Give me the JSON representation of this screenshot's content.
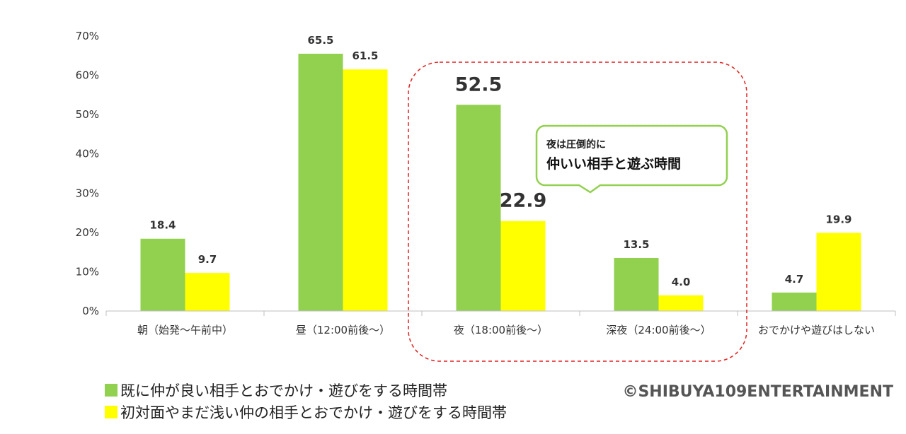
{
  "chart_data": {
    "type": "bar",
    "categories": [
      "朝（始発〜午前中）",
      "昼（12:00前後〜）",
      "夜（18:00前後〜）",
      "深夜（24:00前後〜）",
      "おでかけや遊びはしない"
    ],
    "series": [
      {
        "name": "既に仲が良い相手とおでかけ・遊びをする時間帯",
        "color": "#92d050",
        "values": [
          18.4,
          65.5,
          52.5,
          13.5,
          4.7
        ]
      },
      {
        "name": "初対面やまだ浅い仲の相手とおでかけ・遊びをする時間帯",
        "color": "#ffff00",
        "values": [
          9.7,
          61.5,
          22.9,
          4.0,
          19.9
        ]
      }
    ],
    "data_labels": [
      [
        "18.4",
        "65.5",
        "52.5",
        "13.5",
        "4.7"
      ],
      [
        "9.7",
        "61.5",
        "22.9",
        "4.0",
        "19.9"
      ]
    ],
    "ylim": [
      0,
      70
    ],
    "yticks": [
      "0%",
      "10%",
      "20%",
      "30%",
      "40%",
      "50%",
      "60%",
      "70%"
    ],
    "gridlines": false,
    "legend_position": "bottom-left",
    "highlight": {
      "categories": [
        "夜（18:00前後〜）",
        "深夜（24:00前後〜）"
      ],
      "border_color": "#e02020",
      "callout_line1": "夜は圧倒的に",
      "callout_line2": "仲いい相手と遊ぶ時間",
      "callout_border_color": "#92d050"
    }
  },
  "copyright": "©SHIBUYA109ENTERTAINMENT"
}
